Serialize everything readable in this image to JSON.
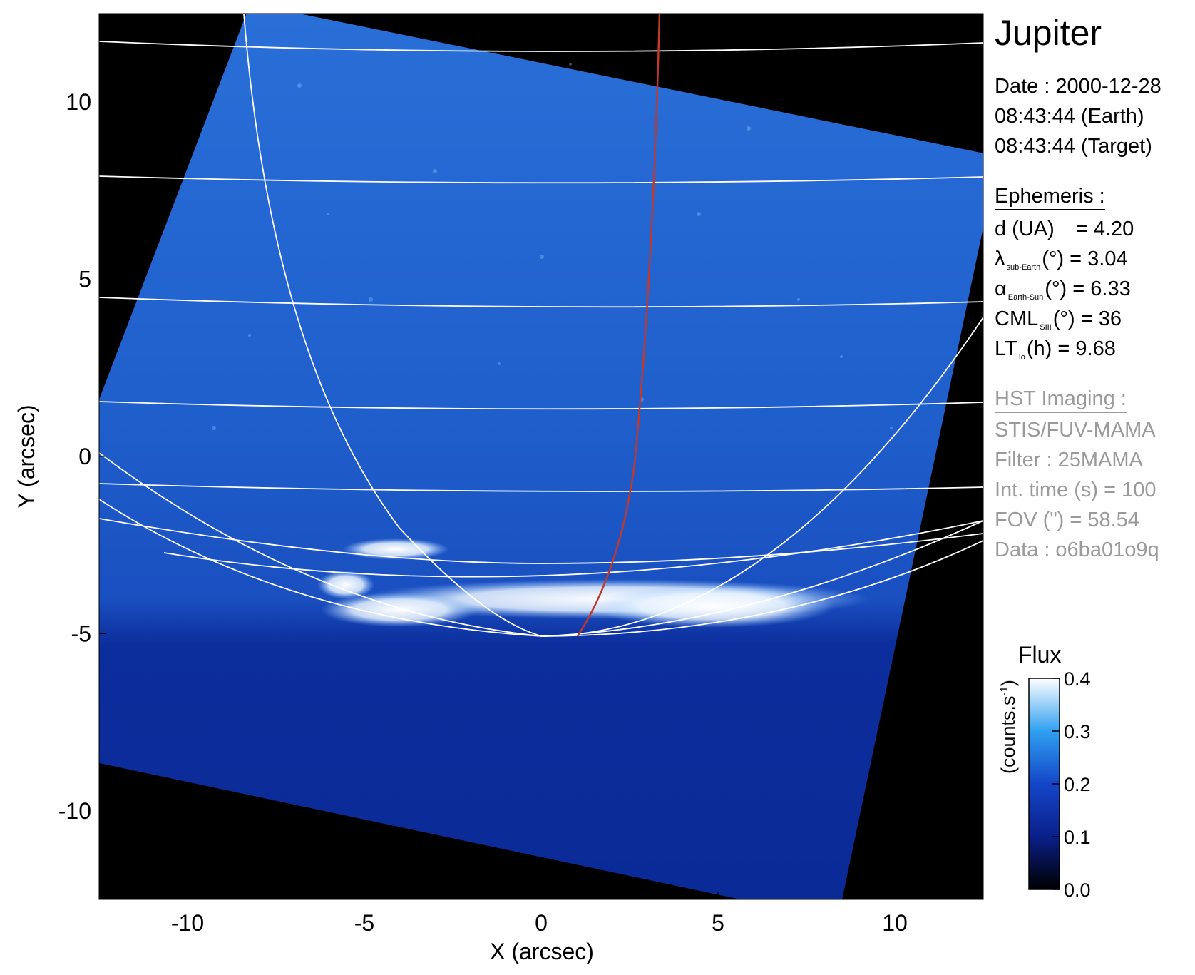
{
  "planet": "Jupiter",
  "info": {
    "date_line": "Date : 2000-12-28",
    "time_earth": "08:43:44 (Earth)",
    "time_target": "08:43:44 (Target)"
  },
  "ephemeris": {
    "header": "Ephemeris :",
    "d_label": "d (UA)",
    "d_value": "= 4.20",
    "lambda_symbol": "λ",
    "lambda_sub": "sub-Earth",
    "lambda_rest": "(°) = 3.04",
    "alpha_symbol": "α",
    "alpha_sub": "Earth-Sun",
    "alpha_rest": "(°) = 6.33",
    "cml_label": "CML",
    "cml_sub": "SIII",
    "cml_rest": "(°) = 36",
    "lt_label": "LT",
    "lt_sub": "Io",
    "lt_rest": "(h) = 9.68"
  },
  "hst": {
    "header": "HST Imaging :",
    "instrument": "STIS/FUV-MAMA",
    "filter": "Filter : 25MAMA",
    "int_time": "Int. time (s) = 100",
    "fov": "FOV (\") = 58.54",
    "data": "Data : o6ba01o9q"
  },
  "colorbar": {
    "title": "Flux",
    "unit": "(counts.s",
    "unit_sup": "-1",
    "unit_close": ")",
    "ticks": [
      "0.0",
      "0.1",
      "0.2",
      "0.3",
      "0.4"
    ],
    "range": [
      0.0,
      0.4
    ]
  },
  "axes": {
    "xlabel": "X (arcsec)",
    "ylabel": "Y (arcsec)",
    "xticks": [
      "-10",
      "-5",
      "0",
      "5",
      "10"
    ],
    "yticks": [
      "10",
      "5",
      "0",
      "-5",
      "-10"
    ],
    "range": [
      -12.5,
      12.5
    ]
  },
  "colors": {
    "image_blue": "#1e5fd0",
    "grid_line": "#ffffff",
    "footprint_line": "#c0392b",
    "background": "#000000"
  }
}
